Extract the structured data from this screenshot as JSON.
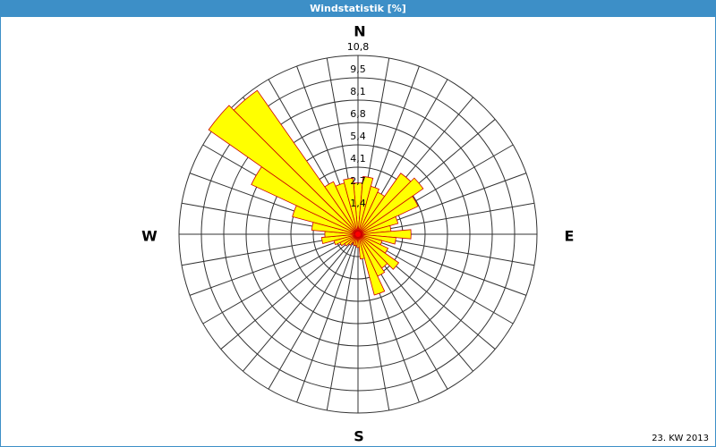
{
  "chart_data": {
    "type": "polar-bar",
    "title": "Windstatistik [%]",
    "compass": [
      "N",
      "E",
      "S",
      "W"
    ],
    "footnote": "23. KW 2013",
    "x": [
      0,
      10,
      20,
      30,
      40,
      50,
      60,
      70,
      80,
      90,
      100,
      110,
      120,
      130,
      140,
      150,
      160,
      170,
      180,
      190,
      200,
      210,
      220,
      230,
      240,
      250,
      260,
      270,
      280,
      290,
      300,
      310,
      320,
      330,
      340,
      350
    ],
    "values": [
      3.1,
      3.5,
      3.0,
      2.8,
      4.5,
      4.8,
      4.0,
      2.5,
      2.0,
      3.2,
      2.3,
      1.5,
      2.0,
      3.0,
      2.5,
      2.8,
      3.8,
      1.5,
      0.8,
      0.7,
      0.7,
      0.6,
      0.8,
      1.0,
      1.2,
      1.5,
      2.2,
      2.0,
      2.8,
      4.1,
      7.1,
      11.0,
      10.6,
      3.5,
      3.2,
      3.4
    ],
    "rlim": [
      0,
      10.8
    ],
    "rticks": [
      {
        "value": 1.35,
        "label": "1,4"
      },
      {
        "value": 2.7,
        "label": "2,7"
      },
      {
        "value": 4.05,
        "label": "4,1"
      },
      {
        "value": 5.4,
        "label": "5,4"
      },
      {
        "value": 6.75,
        "label": "6,8"
      },
      {
        "value": 8.1,
        "label": "8,1"
      },
      {
        "value": 9.45,
        "label": "9,5"
      },
      {
        "value": 10.8,
        "label": "10,8"
      }
    ],
    "color": "#ffff00",
    "edge_color": "#cc0000",
    "grid": true,
    "spoke_step": 10
  }
}
